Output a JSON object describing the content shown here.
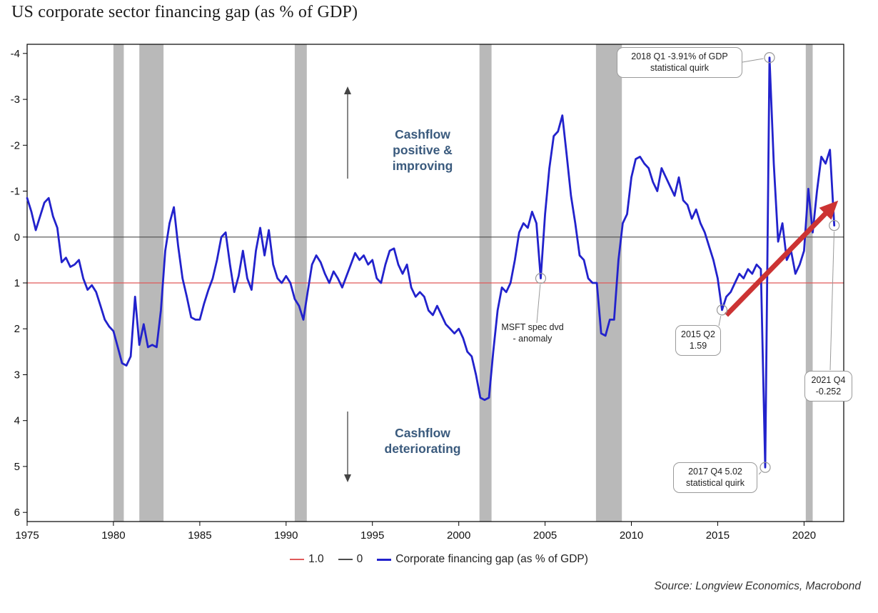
{
  "title": "US corporate sector financing gap (as % of GDP)",
  "source": "Source: Longview Economics, Macrobond",
  "direction_labels": {
    "positive": "Cashflow\npositive &\nimproving",
    "negative": "Cashflow\ndeteriorating"
  },
  "legend": [
    {
      "label": "1.0",
      "color": "#e05a5a",
      "thickness": 2
    },
    {
      "label": "0",
      "color": "#4d4d4d",
      "thickness": 2
    },
    {
      "label": "Corporate financing gap (as % of GDP)",
      "color": "#2222cc",
      "thickness": 3
    }
  ],
  "chart_data": {
    "type": "line",
    "title": "US corporate sector financing gap (as % of GDP)",
    "y_axis_inverted": true,
    "xlim": [
      1975,
      2022.3
    ],
    "ylim_top": -4.2,
    "ylim_bottom": 6.2,
    "x_ticks": [
      1975,
      1980,
      1985,
      1990,
      1995,
      2000,
      2005,
      2010,
      2015,
      2020
    ],
    "y_ticks": [
      -4,
      -3,
      -2,
      -1,
      0,
      1,
      2,
      3,
      4,
      5,
      6
    ],
    "reference_lines": [
      {
        "value": 1.0,
        "color": "#e05a5a"
      },
      {
        "value": 0,
        "color": "#4d4d4d"
      }
    ],
    "recession_bands": [
      [
        1980.0,
        1980.6
      ],
      [
        1981.5,
        1982.9
      ],
      [
        1990.5,
        1991.2
      ],
      [
        2001.2,
        2001.9
      ],
      [
        2007.95,
        2009.45
      ],
      [
        2020.1,
        2020.5
      ]
    ],
    "x_start": 1975.0,
    "x_step": 0.25,
    "series": [
      {
        "name": "Corporate financing gap (as % of GDP)",
        "color": "#2222cc",
        "values": [
          -0.85,
          -0.55,
          -0.15,
          -0.45,
          -0.75,
          -0.85,
          -0.45,
          -0.2,
          0.55,
          0.45,
          0.65,
          0.6,
          0.5,
          0.9,
          1.15,
          1.05,
          1.2,
          1.5,
          1.8,
          1.95,
          2.05,
          2.4,
          2.75,
          2.8,
          2.6,
          1.3,
          2.35,
          1.9,
          2.4,
          2.35,
          2.4,
          1.6,
          0.3,
          -0.3,
          -0.65,
          0.2,
          0.9,
          1.3,
          1.75,
          1.8,
          1.8,
          1.45,
          1.15,
          0.9,
          0.5,
          0.0,
          -0.1,
          0.6,
          1.2,
          0.85,
          0.3,
          0.9,
          1.15,
          0.3,
          -0.2,
          0.4,
          -0.15,
          0.6,
          0.9,
          1.0,
          0.85,
          1.0,
          1.35,
          1.5,
          1.8,
          1.2,
          0.6,
          0.4,
          0.55,
          0.8,
          1.0,
          0.75,
          0.9,
          1.1,
          0.85,
          0.6,
          0.35,
          0.5,
          0.4,
          0.6,
          0.5,
          0.9,
          1.0,
          0.6,
          0.3,
          0.25,
          0.6,
          0.8,
          0.6,
          1.1,
          1.3,
          1.2,
          1.3,
          1.6,
          1.7,
          1.5,
          1.7,
          1.9,
          2.0,
          2.1,
          2.0,
          2.2,
          2.5,
          2.6,
          3.0,
          3.5,
          3.55,
          3.5,
          2.5,
          1.6,
          1.1,
          1.2,
          1.0,
          0.5,
          -0.1,
          -0.3,
          -0.2,
          -0.55,
          -0.3,
          0.9,
          -0.5,
          -1.5,
          -2.2,
          -2.3,
          -2.65,
          -1.8,
          -0.9,
          -0.3,
          0.4,
          0.5,
          0.9,
          1.0,
          1.0,
          2.1,
          2.15,
          1.8,
          1.8,
          0.5,
          -0.3,
          -0.5,
          -1.3,
          -1.7,
          -1.75,
          -1.6,
          -1.5,
          -1.2,
          -1.0,
          -1.5,
          -1.3,
          -1.1,
          -0.9,
          -1.3,
          -0.8,
          -0.7,
          -0.4,
          -0.6,
          -0.3,
          -0.1,
          0.2,
          0.5,
          0.9,
          1.59,
          1.3,
          1.2,
          1.0,
          0.8,
          0.9,
          0.7,
          0.8,
          0.6,
          0.7,
          5.02,
          -3.91,
          -1.6,
          0.1,
          -0.3,
          0.5,
          0.3,
          0.8,
          0.6,
          0.3,
          -1.05,
          -0.1,
          -1.0,
          -1.75,
          -1.6,
          -1.9,
          -0.252
        ]
      }
    ],
    "annotations": [
      {
        "lines": [
          "2018 Q1 -3.91% of GDP",
          "statistical quirk"
        ],
        "x": 2018.0,
        "y": -3.91,
        "boxed": true
      },
      {
        "lines": [
          "MSFT spec dvd",
          "- anomaly"
        ],
        "x": 2004.75,
        "y": 0.9,
        "boxed": false
      },
      {
        "lines": [
          "2015 Q2",
          "1.59"
        ],
        "x": 2015.25,
        "y": 1.59,
        "boxed": true
      },
      {
        "lines": [
          "2017 Q4 5.02",
          "statistical quirk"
        ],
        "x": 2017.75,
        "y": 5.02,
        "boxed": true
      },
      {
        "lines": [
          "2021 Q4",
          "-0.252"
        ],
        "x": 2021.75,
        "y": -0.252,
        "boxed": true
      }
    ],
    "trend_arrow": {
      "from_x": 2015.5,
      "from_y": 1.7,
      "to_x": 2021.6,
      "to_y": -0.65,
      "color": "#cc3333"
    }
  }
}
